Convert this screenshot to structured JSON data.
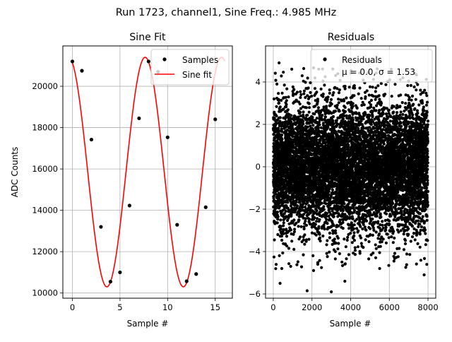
{
  "suptitle": "Run 1723, channel1, Sine Freq.: 4.985 MHz",
  "chart_data": [
    {
      "type": "line",
      "title": "Sine Fit",
      "xlabel": "Sample #",
      "ylabel": "ADC Counts",
      "xlim": [
        -1.0,
        16.8
      ],
      "ylim": [
        9750,
        21950
      ],
      "xticks": [
        0,
        5,
        10,
        15
      ],
      "yticks": [
        10000,
        12000,
        14000,
        16000,
        18000,
        20000
      ],
      "grid": true,
      "legend": "top-right",
      "series": [
        {
          "name": "Samples",
          "kind": "scatter",
          "color": "#000000",
          "x": [
            0,
            1,
            2,
            3,
            4,
            5,
            6,
            7,
            8,
            9,
            10,
            11,
            12,
            13,
            14,
            15
          ],
          "y": [
            21200,
            20750,
            17420,
            13200,
            10550,
            11000,
            14230,
            18450,
            21200,
            20700,
            17530,
            13300,
            10570,
            10920,
            14150,
            18400
          ]
        },
        {
          "name": "Sine fit",
          "kind": "line",
          "color": "#ff0000",
          "model": {
            "amplitude": 5550,
            "offset": 15850,
            "period": 8.03,
            "phase": 1.877,
            "x_range": [
              0,
              16
            ]
          }
        }
      ]
    },
    {
      "type": "scatter",
      "title": "Residuals",
      "xlabel": "Sample #",
      "ylabel": "",
      "xlim": [
        -400,
        8400
      ],
      "ylim": [
        -6.2,
        5.7
      ],
      "xticks": [
        0,
        2000,
        4000,
        6000,
        8000
      ],
      "yticks": [
        -6,
        -4,
        -2,
        0,
        2,
        4
      ],
      "grid": true,
      "legend": "top-right",
      "series": [
        {
          "name": "Residuals",
          "legend_lines": [
            "Residuals",
            "μ = 0.0, σ = 1.53"
          ],
          "color": "#000000",
          "n_points": 8000,
          "x_range": [
            0,
            8000
          ],
          "mean": 0.0,
          "std": 1.53,
          "outliers": [
            {
              "x": 300,
              "y": 4.9
            },
            {
              "x": 350,
              "y": -5.5
            },
            {
              "x": 1750,
              "y": -5.85
            },
            {
              "x": 2700,
              "y": 5.1
            },
            {
              "x": 3000,
              "y": -5.9
            },
            {
              "x": 5000,
              "y": 5.0
            },
            {
              "x": 7800,
              "y": -5.1
            },
            {
              "x": 900,
              "y": -4.7
            },
            {
              "x": 2300,
              "y": -4.6
            },
            {
              "x": 3700,
              "y": -5.4
            },
            {
              "x": 5500,
              "y": -4.8
            },
            {
              "x": 6100,
              "y": 4.6
            }
          ]
        }
      ]
    }
  ]
}
